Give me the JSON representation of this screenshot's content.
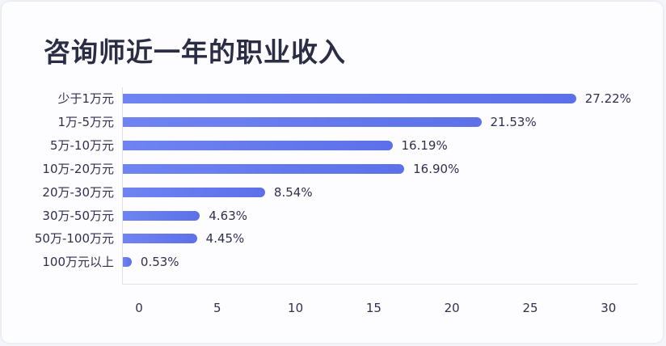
{
  "title": "咨询师近一年的职业收入",
  "chart_data": {
    "type": "bar",
    "orientation": "horizontal",
    "title": "咨询师近一年的职业收入",
    "xlabel": "",
    "ylabel": "",
    "categories": [
      "少于1万元",
      "1万-5万元",
      "5万-10万元",
      "10万-20万元",
      "20万-30万元",
      "30万-50万元",
      "50万-100万元",
      "100万元以上"
    ],
    "values": [
      27.22,
      21.53,
      16.19,
      16.9,
      8.54,
      4.63,
      4.45,
      0.53
    ],
    "value_labels": [
      "27.22%",
      "21.53%",
      "16.19%",
      "16.90%",
      "8.54%",
      "4.63%",
      "4.45%",
      "0.53%"
    ],
    "xlim": [
      0,
      30
    ],
    "xticks": [
      "0",
      "5",
      "10",
      "15",
      "20",
      "25",
      "30"
    ],
    "grid": false,
    "legend": null,
    "bar_color": "#6377ee"
  }
}
